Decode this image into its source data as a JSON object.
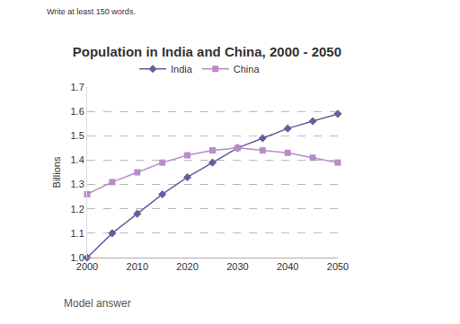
{
  "chart_data": {
    "type": "line",
    "title": "Population in India and China, 2000 - 2050",
    "y_label": "Billions",
    "annotations": [
      "Write at least 150 words.",
      "Model answer"
    ],
    "x": [
      2000,
      2005,
      2010,
      2015,
      2020,
      2025,
      2030,
      2035,
      2040,
      2045,
      2050
    ],
    "series": [
      {
        "name": "India",
        "color": "#6b5b9e",
        "marker": "diamond",
        "line_style": "solid",
        "values": [
          1.0,
          1.1,
          1.18,
          1.26,
          1.33,
          1.39,
          1.45,
          1.49,
          1.53,
          1.56,
          1.59
        ]
      },
      {
        "name": "China",
        "color": "#b98cc6",
        "marker": "square",
        "line_style": "solid",
        "values": [
          1.26,
          1.31,
          1.35,
          1.39,
          1.42,
          1.44,
          1.45,
          1.44,
          1.43,
          1.41,
          1.39
        ]
      }
    ],
    "xlim": [
      2000,
      2050
    ],
    "xticks": [
      2000,
      2010,
      2020,
      2030,
      2040,
      2050
    ],
    "ylim": [
      1.0,
      1.7
    ],
    "yticks": [
      {
        "value": 1.0,
        "label": "1.0"
      },
      1.1,
      1.2,
      1.3,
      1.4,
      1.5,
      1.6,
      1.7
    ],
    "grid": true,
    "legend": "top"
  }
}
